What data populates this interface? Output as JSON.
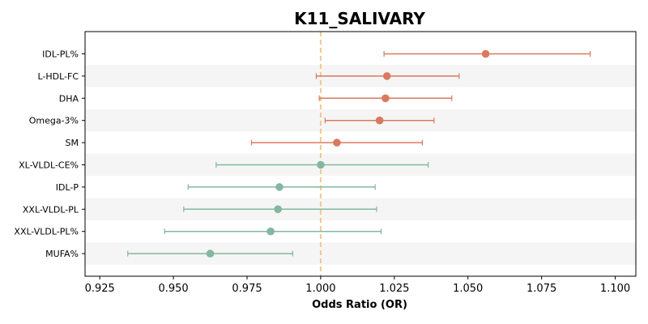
{
  "chart_data": {
    "type": "forest",
    "title": "K11_SALIVARY",
    "xlabel": "Odds Ratio (OR)",
    "xlim": [
      0.92,
      1.107
    ],
    "xticks": [
      0.925,
      0.95,
      0.975,
      1.0,
      1.025,
      1.05,
      1.075,
      1.1
    ],
    "xtick_labels": [
      "0.925",
      "0.950",
      "0.975",
      "1.000",
      "1.025",
      "1.050",
      "1.075",
      "1.100"
    ],
    "reference_line": 1.0,
    "grid": false,
    "categories": [
      "IDL-PL%",
      "L-HDL-FC",
      "DHA",
      "Omega-3%",
      "SM",
      "XL-VLDL-CE%",
      "IDL-P",
      "XXL-VLDL-PL",
      "XXL-VLDL-PL%",
      "MUFA%"
    ],
    "points": [
      {
        "label": "IDL-PL%",
        "or": 1.056,
        "lower": 1.0215,
        "upper": 1.0915,
        "color": "#d97a5f"
      },
      {
        "label": "L-HDL-FC",
        "or": 1.0225,
        "lower": 0.9985,
        "upper": 1.047,
        "color": "#d97a5f"
      },
      {
        "label": "DHA",
        "or": 1.022,
        "lower": 0.9995,
        "upper": 1.0445,
        "color": "#d97a5f"
      },
      {
        "label": "Omega-3%",
        "or": 1.02,
        "lower": 1.0015,
        "upper": 1.0385,
        "color": "#d97a5f"
      },
      {
        "label": "SM",
        "or": 1.0055,
        "lower": 0.9765,
        "upper": 1.0345,
        "color": "#d97a5f"
      },
      {
        "label": "XL-VLDL-CE%",
        "or": 1.0,
        "lower": 0.9645,
        "upper": 1.0365,
        "color": "#83b7a0"
      },
      {
        "label": "IDL-P",
        "or": 0.986,
        "lower": 0.955,
        "upper": 1.0185,
        "color": "#83b7a0"
      },
      {
        "label": "XXL-VLDL-PL",
        "or": 0.9855,
        "lower": 0.9535,
        "upper": 1.019,
        "color": "#83b7a0"
      },
      {
        "label": "XXL-VLDL-PL%",
        "or": 0.983,
        "lower": 0.947,
        "upper": 1.0205,
        "color": "#83b7a0"
      },
      {
        "label": "MUFA%",
        "or": 0.9625,
        "lower": 0.9345,
        "upper": 0.9905,
        "color": "#83b7a0"
      }
    ],
    "colors": {
      "positive": "#d97a5f",
      "negative": "#83b7a0",
      "reference_line": "#f2c88c",
      "row_band": "#f5f5f5"
    }
  }
}
